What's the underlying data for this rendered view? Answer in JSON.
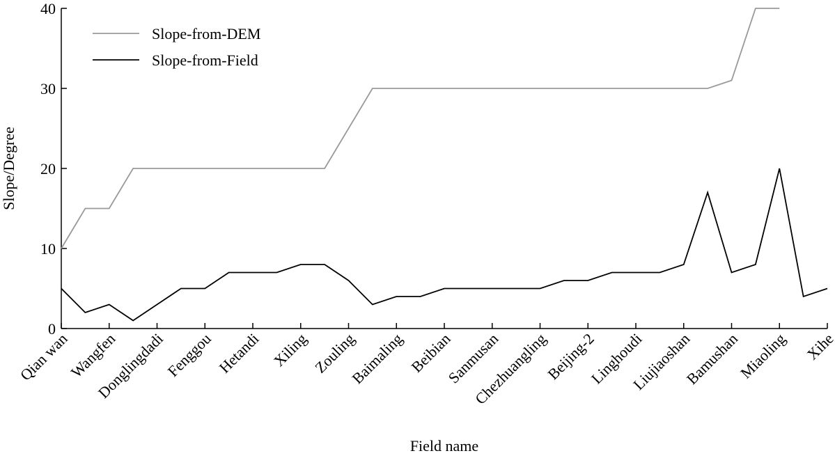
{
  "chart_data": {
    "type": "line",
    "xlabel": "Field name",
    "ylabel": "Slope/Degree",
    "categories": [
      "Qian wan",
      null,
      "Wangfen",
      null,
      "Donglingdadi",
      null,
      "Fenggou",
      null,
      "Hetandi",
      null,
      "Xiling",
      null,
      "Zouling",
      null,
      "Baimaling",
      null,
      "Beibian",
      null,
      "Sanmusan",
      null,
      "Chezhuangling",
      null,
      "Beijing-2",
      null,
      "Linghoudi",
      null,
      "Liujiaoshan",
      null,
      "Bamushan",
      null,
      "Miaoling",
      null,
      "Xihe"
    ],
    "series": [
      {
        "name": "Slope-from-DEM",
        "color": "#999999",
        "values": [
          10,
          15,
          15,
          20,
          20,
          20,
          20,
          20,
          20,
          20,
          20,
          20,
          25,
          30,
          30,
          30,
          30,
          30,
          30,
          30,
          30,
          30,
          30,
          30,
          30,
          30,
          30,
          30,
          31,
          40,
          40,
          null,
          null
        ]
      },
      {
        "name": "Slope-from-Field",
        "color": "#000000",
        "values": [
          5,
          2,
          3,
          1,
          3,
          5,
          5,
          7,
          7,
          7,
          8,
          8,
          6,
          3,
          4,
          4,
          5,
          5,
          5,
          5,
          5,
          6,
          6,
          7,
          7,
          7,
          8,
          17,
          7,
          8,
          20,
          4,
          5
        ]
      }
    ],
    "ylim": [
      0,
      40
    ],
    "yticks": [
      0,
      10,
      20,
      30,
      40
    ],
    "grid": false,
    "legend": "upper left"
  }
}
